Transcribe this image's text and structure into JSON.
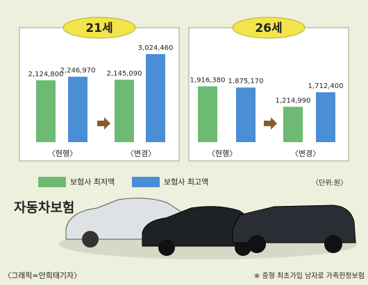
{
  "chart_data": [
    {
      "type": "bar",
      "title": "21세",
      "categories": [
        "〈현행〉",
        "〈변경〉"
      ],
      "series": [
        {
          "color": "#6dbb72",
          "values": [
            2124800,
            2145090
          ],
          "value_labels": [
            "2,124,800",
            "2,145,090"
          ]
        },
        {
          "color": "#4a8fd6",
          "values": [
            2246970,
            3024460
          ],
          "value_labels": [
            "2,246,970",
            "3,024,460"
          ]
        }
      ]
    },
    {
      "type": "bar",
      "title": "26세",
      "categories": [
        "〈현행〉",
        "〈변경〉"
      ],
      "series": [
        {
          "color": "#6dbb72",
          "values": [
            1916380,
            1214990
          ],
          "value_labels": [
            "1,916,380",
            "1,214,990"
          ]
        },
        {
          "color": "#4a8fd6",
          "values": [
            1875170,
            1712400
          ],
          "value_labels": [
            "1,875,170",
            "1,712,400"
          ]
        }
      ]
    }
  ],
  "legend": [
    {
      "name": "보험사 최저액",
      "color": "#6dbb72"
    },
    {
      "name": "보험사 최고액",
      "color": "#4a8fd6"
    }
  ],
  "unit_note": "〈단위:원〉",
  "illustration_title": "자동차보험",
  "credit": "〈그래픽=안희태기자〉",
  "footnote": "※ 중형 최초가입 남자로 가족한정보험"
}
